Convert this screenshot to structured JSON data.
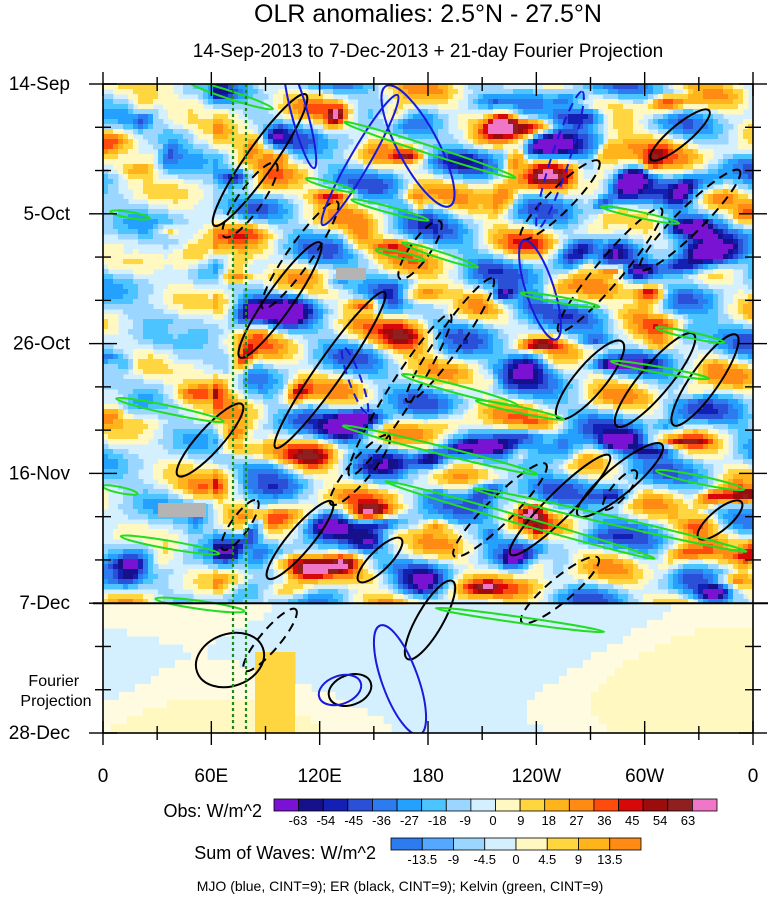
{
  "chart_data": {
    "type": "heatmap",
    "title": "OLR anomalies: 2.5°N - 27.5°N",
    "subtitle": "14-Sep-2013 to 7-Dec-2013 + 21-day Fourier Projection",
    "y_tick_labels": [
      "14-Sep",
      "5-Oct",
      "26-Oct",
      "16-Nov",
      "7-Dec",
      "28-Dec"
    ],
    "x_tick_labels": [
      "0",
      "60E",
      "120E",
      "180",
      "120W",
      "60W",
      "0"
    ],
    "x_ticks_lon": [
      0,
      60,
      120,
      180,
      240,
      300,
      360
    ],
    "y_ticks_day": [
      0,
      21,
      42,
      63,
      84,
      105
    ],
    "obs_end_day": 84,
    "projection_label": "Fourier\nProjection",
    "obs_colorbar": {
      "label": "Obs: W/m^2",
      "levels": [
        "-63",
        "-54",
        "-45",
        "-36",
        "-27",
        "-18",
        "-9",
        "0",
        "9",
        "18",
        "27",
        "36",
        "45",
        "54",
        "63"
      ],
      "colors": [
        "#7a12d4",
        "#16108a",
        "#1420b4",
        "#2a50d8",
        "#2c7cf0",
        "#24a0ff",
        "#4cc4ff",
        "#9ad6ff",
        "#d4f0ff",
        "#fff8c0",
        "#ffd640",
        "#ffb41c",
        "#ff8a14",
        "#ff4c0c",
        "#d80808",
        "#9c0c0c",
        "#902020",
        "#f076c8"
      ]
    },
    "waves_colorbar": {
      "label": "Sum of Waves: W/m^2",
      "levels": [
        "-13.5",
        "-9",
        "-4.5",
        "0",
        "4.5",
        "9",
        "13.5"
      ],
      "colors": [
        "#2c7cf0",
        "#54a8ff",
        "#9ad6ff",
        "#d4f0ff",
        "#fff8c0",
        "#ffd640",
        "#ffb41c",
        "#ff8a14"
      ]
    },
    "footnote": "MJO (blue, CINT=9); ER (black, CINT=9); Kelvin (green, CINT=9)",
    "grid": false
  }
}
